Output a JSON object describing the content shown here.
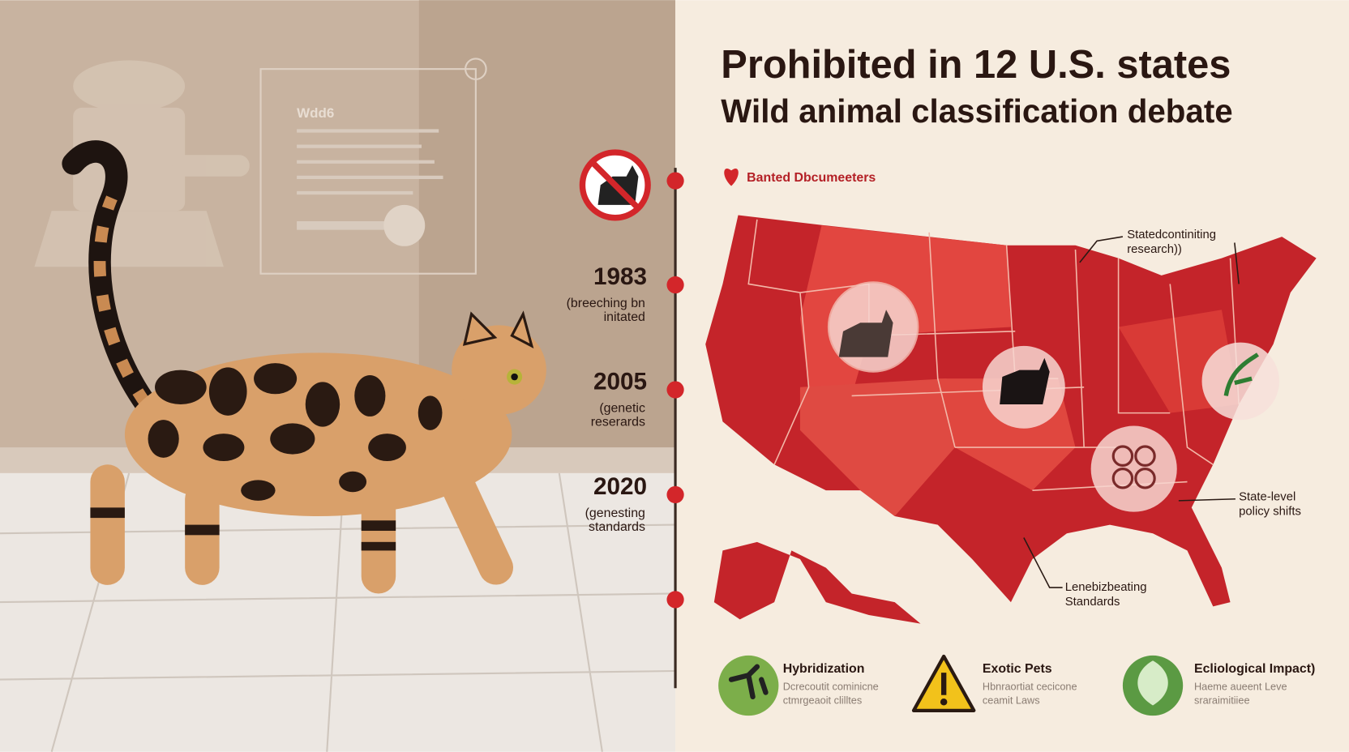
{
  "header": {
    "title": "Prohibited in 12 U.S. states",
    "subtitle": "Wild animal classification debate"
  },
  "panel": {
    "label": "Wdd6"
  },
  "timeline": [
    {
      "year": "1983",
      "note": [
        "(breeching bn",
        "initated"
      ]
    },
    {
      "year": "2005",
      "note": [
        "(genetic",
        "reserards"
      ]
    },
    {
      "year": "2020",
      "note": [
        "(genesting",
        "standards"
      ]
    }
  ],
  "map": {
    "legend": "Banted Dbcumeeters",
    "annotations": [
      [
        "Statedcontiniting",
        "research))"
      ],
      [
        "State-level",
        "policy shifts"
      ],
      [
        "Lenebizbeating",
        "Standards"
      ]
    ]
  },
  "footer": [
    {
      "title": "Hybridization",
      "text": [
        "Dcrecoutit cominicne",
        "ctmrgeaoit clilltes"
      ]
    },
    {
      "title": "Exotic Pets",
      "text": [
        "Hbnraortiat cecicone",
        "ceamit Laws"
      ]
    },
    {
      "title": "Ecliological Impact)",
      "text": [
        "Haeme aueent Leve",
        "sraraimitiiee"
      ]
    }
  ]
}
